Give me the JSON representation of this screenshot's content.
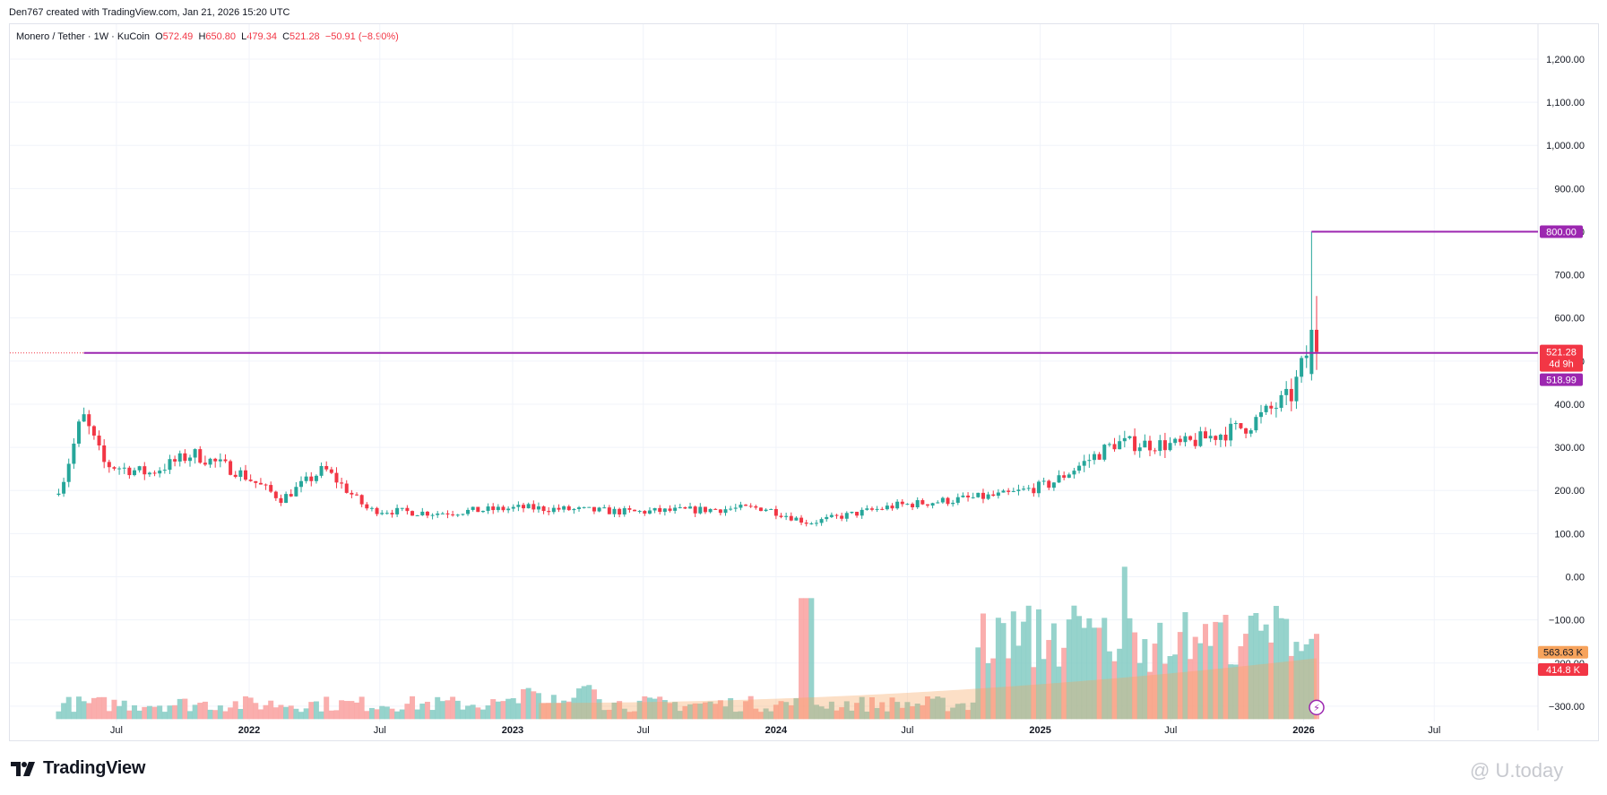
{
  "credit": "Den767 created with TradingView.com, Jan 21, 2026 15:20 UTC",
  "legend": {
    "symbol": "Monero / Tether · 1W · KuCoin",
    "o_label": "O",
    "o": "572.49",
    "h_label": "H",
    "h": "650.80",
    "l_label": "L",
    "l": "479.34",
    "c_label": "C",
    "c": "521.28",
    "change": "−50.91 (−8.90%)"
  },
  "footer": {
    "brand": "TradingView",
    "watermark": "@ U.today"
  },
  "colors": {
    "up": "#26a69a",
    "down": "#f23645",
    "level": "#9c27b0",
    "vol_up": "#84cbc3",
    "vol_down": "#f9a09f",
    "vol_ma": "#f7a35c"
  },
  "chart_data": {
    "type": "candlestick",
    "title": "Monero / Tether · 1W · KuCoin",
    "y_ticks": [
      "1,200.00",
      "1,100.00",
      "1,000.00",
      "900.00",
      "800.00",
      "700.00",
      "600.00",
      "500.00",
      "400.00",
      "300.00",
      "200.00",
      "100.00",
      "0.00",
      "−100.00",
      "−200.00",
      "−300.00"
    ],
    "x_ticks": [
      "Jul",
      "2022",
      "Jul",
      "2023",
      "Jul",
      "2024",
      "Jul",
      "2025",
      "Jul",
      "2026",
      "Jul"
    ],
    "ylim": [
      -330,
      1260
    ],
    "grid": true,
    "price_labels": {
      "last": "521.28",
      "countdown": "4d 9h",
      "level_low": "518.99",
      "level_high": "800.00",
      "vol_ma": "563.63 K",
      "vol_last": "414.8 K"
    },
    "horizontal_levels": [
      518.99,
      800.0
    ],
    "candles_approx": [
      {
        "date": "2021-04",
        "o": 180,
        "h": 240,
        "l": 170,
        "c": 230
      },
      {
        "date": "2021-05",
        "o": 300,
        "h": 518.99,
        "l": 280,
        "c": 450
      },
      {
        "date": "2021-06",
        "o": 280,
        "h": 300,
        "l": 150,
        "c": 240
      },
      {
        "date": "2021-08",
        "o": 230,
        "h": 270,
        "l": 200,
        "c": 250
      },
      {
        "date": "2021-10",
        "o": 270,
        "h": 330,
        "l": 240,
        "c": 300
      },
      {
        "date": "2021-12",
        "o": 260,
        "h": 290,
        "l": 200,
        "c": 230
      },
      {
        "date": "2022-02",
        "o": 200,
        "h": 230,
        "l": 140,
        "c": 160
      },
      {
        "date": "2022-04",
        "o": 230,
        "h": 290,
        "l": 200,
        "c": 270
      },
      {
        "date": "2022-06",
        "o": 180,
        "h": 200,
        "l": 100,
        "c": 130
      },
      {
        "date": "2022-09",
        "o": 150,
        "h": 175,
        "l": 130,
        "c": 145
      },
      {
        "date": "2023-01",
        "o": 150,
        "h": 180,
        "l": 140,
        "c": 170
      },
      {
        "date": "2023-06",
        "o": 140,
        "h": 170,
        "l": 130,
        "c": 160
      },
      {
        "date": "2023-12",
        "o": 170,
        "h": 180,
        "l": 130,
        "c": 150
      },
      {
        "date": "2024-02",
        "o": 130,
        "h": 150,
        "l": 110,
        "c": 120
      },
      {
        "date": "2024-06",
        "o": 160,
        "h": 185,
        "l": 145,
        "c": 170
      },
      {
        "date": "2024-11",
        "o": 160,
        "h": 230,
        "l": 150,
        "c": 220
      },
      {
        "date": "2025-01",
        "o": 200,
        "h": 240,
        "l": 180,
        "c": 230
      },
      {
        "date": "2025-04",
        "o": 220,
        "h": 420,
        "l": 210,
        "c": 400
      },
      {
        "date": "2025-07",
        "o": 330,
        "h": 350,
        "l": 240,
        "c": 280
      },
      {
        "date": "2025-10",
        "o": 300,
        "h": 420,
        "l": 280,
        "c": 400
      },
      {
        "date": "2025-12",
        "o": 400,
        "h": 480,
        "l": 360,
        "c": 440
      },
      {
        "date": "2026-01-05",
        "o": 460,
        "h": 800,
        "l": 430,
        "c": 572.49
      },
      {
        "date": "2026-01-19",
        "o": 572.49,
        "h": 650.8,
        "l": 479.34,
        "c": 521.28
      }
    ]
  }
}
